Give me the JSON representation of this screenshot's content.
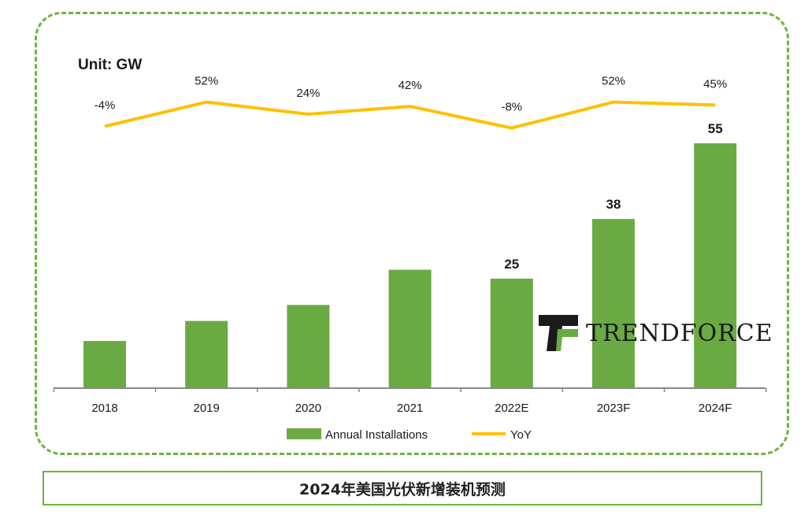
{
  "caption": "2024年美国光伏新增装机预测",
  "logo": {
    "word": "TRENDFORCE"
  },
  "chart_data": {
    "type": "bar",
    "unit_label": "Unit: GW",
    "categories": [
      "2018",
      "2019",
      "2020",
      "2021",
      "2022E",
      "2023F",
      "2024F"
    ],
    "series": [
      {
        "name": "Annual Installations",
        "type": "bar",
        "color": "#6aaa43",
        "values": [
          10.6,
          15.1,
          18.7,
          26.6,
          24.6,
          38,
          55
        ],
        "data_labels": [
          "",
          "",
          "",
          "",
          "25",
          "38",
          "55"
        ]
      },
      {
        "name": "YoY",
        "type": "line",
        "color": "#ffc000",
        "values": [
          -4,
          52,
          24,
          42,
          -8,
          52,
          45
        ],
        "data_labels": [
          "-4%",
          "52%",
          "24%",
          "42%",
          "-8%",
          "52%",
          "45%"
        ]
      }
    ],
    "ylim": [
      0,
      55
    ],
    "grid": false,
    "legend": "bottom"
  }
}
